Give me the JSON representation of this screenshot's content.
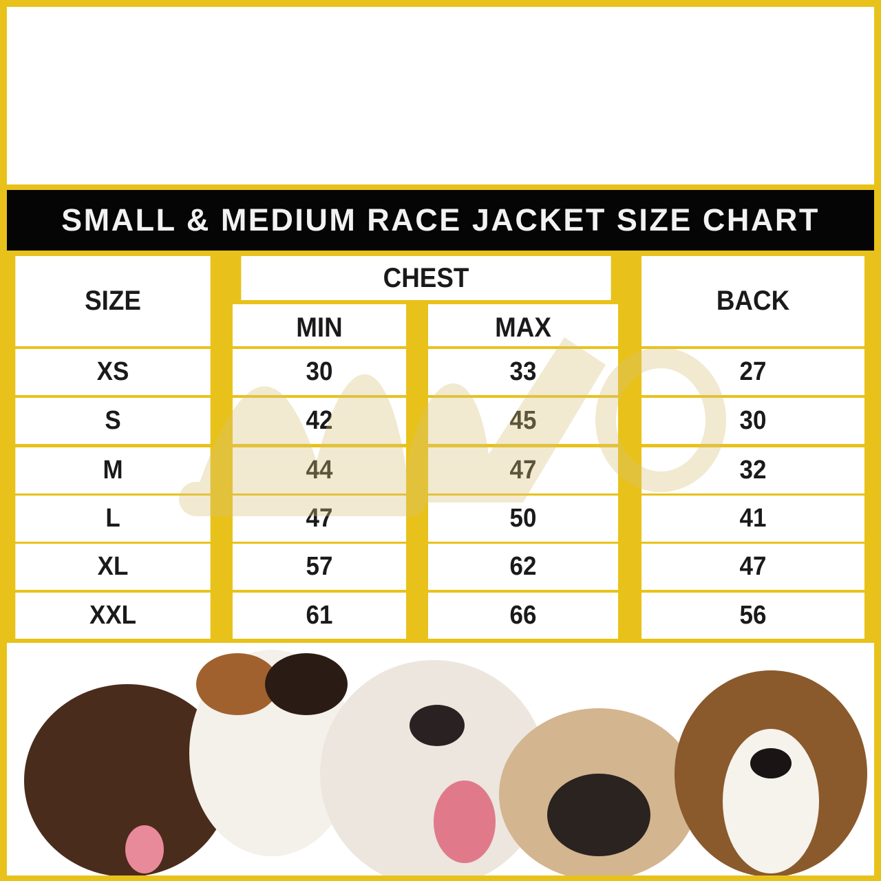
{
  "title": "SMALL & MEDIUM RACE JACKET SIZE CHART",
  "colors": {
    "border": "#e8c21a",
    "title_bar": "#050505",
    "title_text": "#f2f2f2"
  },
  "table": {
    "headers": {
      "size": "SIZE",
      "chest": "CHEST",
      "min": "MIN",
      "max": "MAX",
      "back": "BACK"
    },
    "rows": [
      {
        "size": "XS",
        "min": "30",
        "max": "33",
        "back": "27"
      },
      {
        "size": "S",
        "min": "42",
        "max": "45",
        "back": "30"
      },
      {
        "size": "M",
        "min": "44",
        "max": "47",
        "back": "32"
      },
      {
        "size": "L",
        "min": "47",
        "max": "50",
        "back": "41"
      },
      {
        "size": "XL",
        "min": "57",
        "max": "62",
        "back": "47"
      },
      {
        "size": "XXL",
        "min": "61",
        "max": "66",
        "back": "56"
      }
    ]
  },
  "watermark": "desing",
  "image": {
    "subject": "dogs-photo"
  }
}
